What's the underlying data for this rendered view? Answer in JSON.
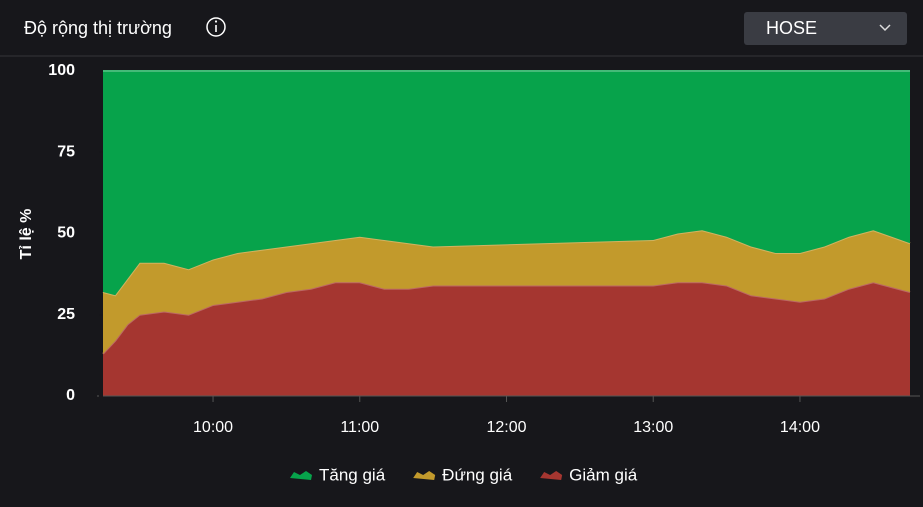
{
  "header": {
    "title": "Độ rộng thị trường",
    "exchange": "HOSE"
  },
  "chart_data": {
    "type": "area",
    "stacked": true,
    "ylabel": "Tỉ lệ %",
    "x": [
      555,
      560,
      565,
      570,
      580,
      590,
      600,
      610,
      620,
      630,
      640,
      650,
      660,
      670,
      680,
      690,
      780,
      790,
      800,
      810,
      820,
      830,
      840,
      850,
      860,
      870,
      885
    ],
    "xlim": [
      555,
      885
    ],
    "xticks": [
      {
        "value": 600,
        "label": "10:00"
      },
      {
        "value": 660,
        "label": "11:00"
      },
      {
        "value": 720,
        "label": "12:00"
      },
      {
        "value": 780,
        "label": "13:00"
      },
      {
        "value": 840,
        "label": "14:00"
      }
    ],
    "ylim": [
      0,
      100
    ],
    "yticks": [
      0,
      25,
      50,
      75,
      100
    ],
    "series": [
      {
        "name": "Tăng giá",
        "color": "#07a34b",
        "values": [
          68,
          69,
          64,
          59,
          59,
          61,
          58,
          56,
          55,
          54,
          53,
          52,
          51,
          52,
          53,
          54,
          52,
          50,
          49,
          51,
          54,
          56,
          56,
          54,
          51,
          49,
          53
        ]
      },
      {
        "name": "Đứng giá",
        "color": "#c29a2c",
        "values": [
          19,
          14,
          14,
          16,
          15,
          14,
          14,
          15,
          15,
          14,
          14,
          13,
          14,
          15,
          14,
          12,
          14,
          15,
          16,
          15,
          15,
          14,
          15,
          16,
          16,
          16,
          15
        ]
      },
      {
        "name": "Giảm giá",
        "color": "#a53630",
        "values": [
          13,
          17,
          22,
          25,
          26,
          25,
          28,
          29,
          30,
          32,
          33,
          35,
          35,
          33,
          33,
          34,
          34,
          35,
          35,
          34,
          31,
          30,
          29,
          30,
          33,
          35,
          32
        ]
      }
    ]
  }
}
